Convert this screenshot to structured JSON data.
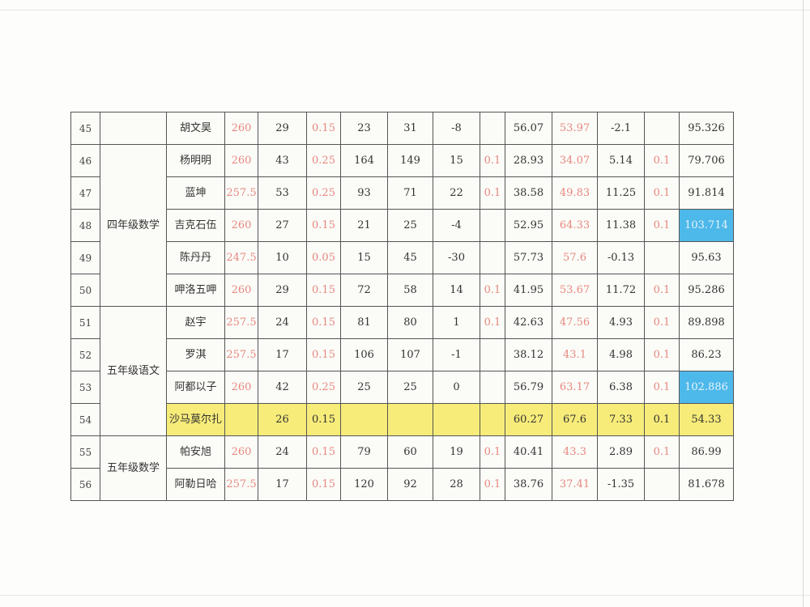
{
  "table": {
    "groups": [
      {
        "label": "",
        "rows": 1
      },
      {
        "label": "四年级数学",
        "rows": 5
      },
      {
        "label": "五年级语文",
        "rows": 4
      },
      {
        "label": "五年级数学",
        "rows": 2
      }
    ],
    "rows": [
      {
        "no": "45",
        "name": "胡文昊",
        "cells": [
          "260",
          "29",
          "0.15",
          "23",
          "31",
          "-8",
          "",
          "56.07",
          "53.97",
          "-2.1",
          "",
          "95.326"
        ]
      },
      {
        "no": "46",
        "name": "杨明明",
        "cells": [
          "260",
          "43",
          "0.25",
          "164",
          "149",
          "15",
          "0.1",
          "28.93",
          "34.07",
          "5.14",
          "0.1",
          "79.706"
        ]
      },
      {
        "no": "47",
        "name": "蓝坤",
        "cells": [
          "257.5",
          "53",
          "0.25",
          "93",
          "71",
          "22",
          "0.1",
          "38.58",
          "49.83",
          "11.25",
          "0.1",
          "91.814"
        ]
      },
      {
        "no": "48",
        "name": "吉克石伍",
        "cells": [
          "260",
          "27",
          "0.15",
          "21",
          "25",
          "-4",
          "",
          "52.95",
          "64.33",
          "11.38",
          "0.1",
          "103.714"
        ],
        "highlight": true
      },
      {
        "no": "49",
        "name": "陈丹丹",
        "cells": [
          "247.5",
          "10",
          "0.05",
          "15",
          "45",
          "-30",
          "",
          "57.73",
          "57.6",
          "-0.13",
          "",
          "95.63"
        ]
      },
      {
        "no": "50",
        "name": "呷洛五呷",
        "cells": [
          "260",
          "29",
          "0.15",
          "72",
          "58",
          "14",
          "0.1",
          "41.95",
          "53.67",
          "11.72",
          "0.1",
          "95.286"
        ]
      },
      {
        "no": "51",
        "name": "赵宇",
        "cells": [
          "257.5",
          "24",
          "0.15",
          "81",
          "80",
          "1",
          "0.1",
          "42.63",
          "47.56",
          "4.93",
          "0.1",
          "89.898"
        ]
      },
      {
        "no": "52",
        "name": "罗淇",
        "cells": [
          "257.5",
          "17",
          "0.15",
          "106",
          "107",
          "-1",
          "",
          "38.12",
          "43.1",
          "4.98",
          "0.1",
          "86.23"
        ]
      },
      {
        "no": "53",
        "name": "阿都以子",
        "cells": [
          "260",
          "42",
          "0.25",
          "25",
          "25",
          "0",
          "",
          "56.79",
          "63.17",
          "6.38",
          "0.1",
          "102.886"
        ],
        "highlight": true
      },
      {
        "no": "54",
        "name": "沙马莫尔扎",
        "cells": [
          "",
          "26",
          "0.15",
          "",
          "",
          "",
          "",
          "60.27",
          "67.6",
          "7.33",
          "0.1",
          "54.33"
        ],
        "yellow": true
      },
      {
        "no": "55",
        "name": "帕安旭",
        "cells": [
          "260",
          "24",
          "0.15",
          "79",
          "60",
          "19",
          "0.1",
          "40.41",
          "43.3",
          "2.89",
          "0.1",
          "86.99"
        ]
      },
      {
        "no": "56",
        "name": "阿勒日哈",
        "cells": [
          "257.5",
          "17",
          "0.15",
          "120",
          "92",
          "28",
          "0.1",
          "38.76",
          "37.41",
          "-1.35",
          "",
          "81.678"
        ]
      }
    ],
    "colors": {
      "red_text": "#e8877f",
      "highlight_blue": "#4db8ea",
      "row_yellow": "#f7ec7a"
    }
  }
}
